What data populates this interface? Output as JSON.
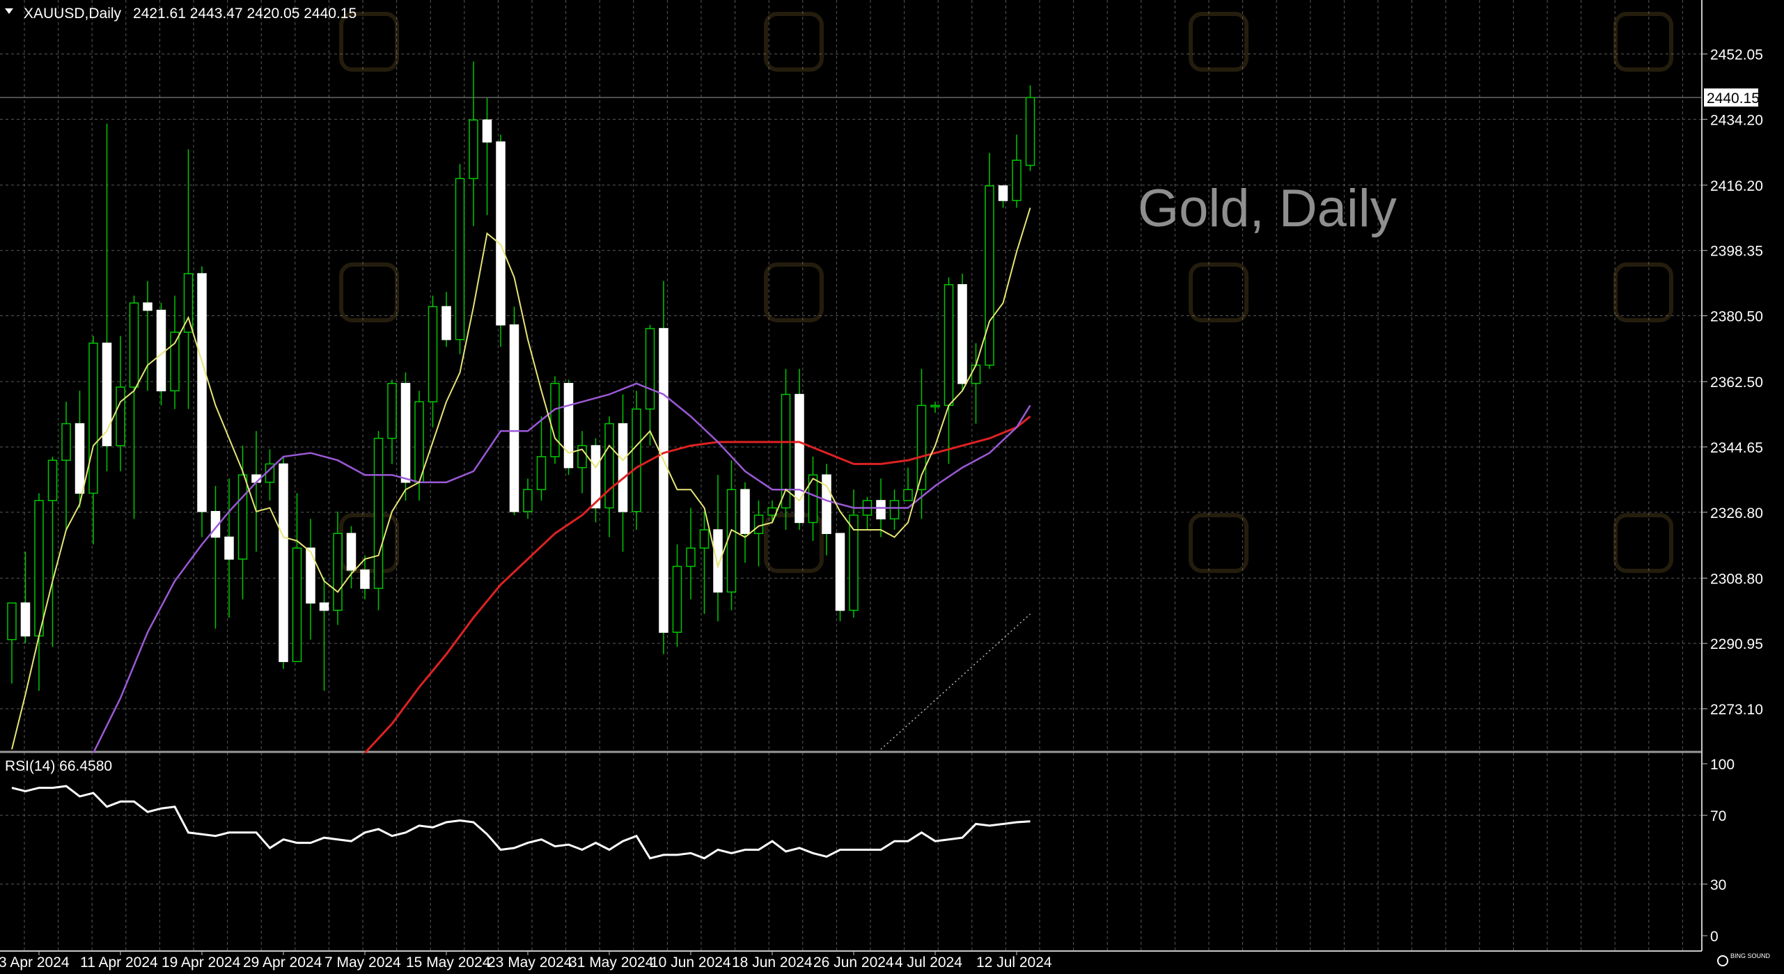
{
  "header": {
    "symbol_label": "XAUUSD,Daily",
    "ohlc": "2421.61 2443.47 2420.05 2440.15"
  },
  "watermark": "Gold, Daily",
  "last_price_label": "2440.15",
  "rsi_label": "RSI(14) 66.4580",
  "colors": {
    "background": "#000000",
    "grid": "#5a5a5a",
    "up_wick": "#00c800",
    "up_body": "#000000",
    "down_body": "#ffffff",
    "ma_fast": "#e6e676",
    "ma_mid": "#9b59d6",
    "ma_slow": "#dd2222",
    "rsi": "#ffffff"
  },
  "chart_data": [
    {
      "type": "candlestick",
      "title": "Gold, Daily",
      "ylim": [
        2261.3,
        2466.8
      ],
      "y_ticks": [
        "2452.05",
        "2434.20",
        "2416.20",
        "2398.35",
        "2380.50",
        "2362.50",
        "2344.65",
        "2326.80",
        "2308.80",
        "2290.95",
        "2273.10"
      ],
      "x_ticks": [
        {
          "i": 2,
          "label": "3 Apr 2024"
        },
        {
          "i": 8,
          "label": "11 Apr 2024"
        },
        {
          "i": 14,
          "label": "19 Apr 2024"
        },
        {
          "i": 20,
          "label": "29 Apr 2024"
        },
        {
          "i": 26,
          "label": "7 May 2024"
        },
        {
          "i": 32,
          "label": "15 May 2024"
        },
        {
          "i": 38,
          "label": "23 May 2024"
        },
        {
          "i": 44,
          "label": "31 May 2024"
        },
        {
          "i": 50,
          "label": "10 Jun 2024"
        },
        {
          "i": 56,
          "label": "18 Jun 2024"
        },
        {
          "i": 62,
          "label": "26 Jun 2024"
        },
        {
          "i": 68,
          "label": "4 Jul 2024"
        },
        {
          "i": 74,
          "label": "12 Jul 2024"
        }
      ],
      "candles": [
        [
          2292,
          2302,
          2280,
          2302
        ],
        [
          2302,
          2293,
          2291,
          2316
        ],
        [
          2293,
          2330,
          2278,
          2332
        ],
        [
          2330,
          2341,
          2290,
          2342
        ],
        [
          2341,
          2351,
          2322,
          2357
        ],
        [
          2351,
          2332,
          2328,
          2360
        ],
        [
          2332,
          2373,
          2318,
          2375
        ],
        [
          2373,
          2345,
          2338,
          2433
        ],
        [
          2345,
          2361,
          2338,
          2375
        ],
        [
          2361,
          2384,
          2325,
          2386
        ],
        [
          2384,
          2382,
          2360,
          2390
        ],
        [
          2382,
          2360,
          2356,
          2384
        ],
        [
          2360,
          2376,
          2355,
          2386
        ],
        [
          2376,
          2392,
          2355,
          2426
        ],
        [
          2392,
          2327,
          2320,
          2394
        ],
        [
          2327,
          2320,
          2295,
          2334
        ],
        [
          2320,
          2314,
          2298,
          2336
        ],
        [
          2314,
          2337,
          2303,
          2345
        ],
        [
          2337,
          2335,
          2316,
          2349
        ],
        [
          2335,
          2340,
          2330,
          2344
        ],
        [
          2340,
          2286,
          2284,
          2342
        ],
        [
          2286,
          2317,
          2286,
          2332
        ],
        [
          2317,
          2302,
          2292,
          2325
        ],
        [
          2302,
          2300,
          2278,
          2309
        ],
        [
          2300,
          2321,
          2296,
          2327
        ],
        [
          2321,
          2311,
          2306,
          2323
        ],
        [
          2311,
          2306,
          2303,
          2315
        ],
        [
          2306,
          2347,
          2300,
          2349
        ],
        [
          2347,
          2362,
          2340,
          2363
        ],
        [
          2362,
          2335,
          2330,
          2365
        ],
        [
          2335,
          2357,
          2330,
          2360
        ],
        [
          2357,
          2383,
          2350,
          2386
        ],
        [
          2383,
          2374,
          2372,
          2387
        ],
        [
          2374,
          2418,
          2370,
          2422
        ],
        [
          2418,
          2434,
          2405,
          2450
        ],
        [
          2434,
          2428,
          2408,
          2440
        ],
        [
          2428,
          2378,
          2372,
          2430
        ],
        [
          2378,
          2327,
          2326,
          2383
        ],
        [
          2327,
          2333,
          2325,
          2336
        ],
        [
          2333,
          2342,
          2330,
          2353
        ],
        [
          2342,
          2362,
          2340,
          2364
        ],
        [
          2362,
          2339,
          2337,
          2363
        ],
        [
          2339,
          2345,
          2332,
          2349
        ],
        [
          2345,
          2328,
          2324,
          2347
        ],
        [
          2328,
          2351,
          2320,
          2353
        ],
        [
          2351,
          2327,
          2316,
          2359
        ],
        [
          2327,
          2355,
          2322,
          2360
        ],
        [
          2355,
          2377,
          2345,
          2378
        ],
        [
          2377,
          2294,
          2288,
          2390
        ],
        [
          2294,
          2312,
          2290,
          2318
        ],
        [
          2312,
          2317,
          2303,
          2328
        ],
        [
          2317,
          2322,
          2299,
          2327
        ],
        [
          2322,
          2305,
          2297,
          2337
        ],
        [
          2305,
          2333,
          2300,
          2341
        ],
        [
          2333,
          2321,
          2313,
          2335
        ],
        [
          2321,
          2326,
          2312,
          2330
        ],
        [
          2326,
          2328,
          2324,
          2330
        ],
        [
          2328,
          2359,
          2322,
          2366
        ],
        [
          2359,
          2324,
          2322,
          2366
        ],
        [
          2324,
          2337,
          2319,
          2342
        ],
        [
          2337,
          2321,
          2315,
          2340
        ],
        [
          2321,
          2300,
          2297,
          2321
        ],
        [
          2300,
          2326,
          2298,
          2333
        ],
        [
          2326,
          2330,
          2322,
          2331
        ],
        [
          2330,
          2325,
          2320,
          2336
        ],
        [
          2325,
          2330,
          2322,
          2333
        ],
        [
          2330,
          2333,
          2330,
          2339
        ],
        [
          2333,
          2356,
          2325,
          2366
        ],
        [
          2356,
          2356,
          2354,
          2357
        ],
        [
          2356,
          2389,
          2340,
          2391
        ],
        [
          2389,
          2362,
          2360,
          2392
        ],
        [
          2362,
          2367,
          2351,
          2373
        ],
        [
          2367,
          2416,
          2366,
          2425
        ],
        [
          2416,
          2412,
          2410,
          2416
        ],
        [
          2412,
          2423,
          2410,
          2430
        ],
        [
          2421.61,
          2440.15,
          2420.05,
          2443.47
        ]
      ],
      "ma_fast": [
        [
          0,
          2262
        ],
        [
          1,
          2277
        ],
        [
          2,
          2293
        ],
        [
          3,
          2308
        ],
        [
          4,
          2322
        ],
        [
          5,
          2329
        ],
        [
          6,
          2345
        ],
        [
          7,
          2349
        ],
        [
          8,
          2357
        ],
        [
          9,
          2360
        ],
        [
          10,
          2367
        ],
        [
          11,
          2370
        ],
        [
          12,
          2373
        ],
        [
          13,
          2380
        ],
        [
          14,
          2368
        ],
        [
          15,
          2356
        ],
        [
          16,
          2347
        ],
        [
          17,
          2338
        ],
        [
          18,
          2327
        ],
        [
          19,
          2328
        ],
        [
          20,
          2320
        ],
        [
          21,
          2319
        ],
        [
          22,
          2316
        ],
        [
          23,
          2308
        ],
        [
          24,
          2305
        ],
        [
          25,
          2310
        ],
        [
          26,
          2314
        ],
        [
          27,
          2315
        ],
        [
          28,
          2327
        ],
        [
          29,
          2333
        ],
        [
          30,
          2335
        ],
        [
          31,
          2346
        ],
        [
          32,
          2357
        ],
        [
          33,
          2365
        ],
        [
          34,
          2383
        ],
        [
          35,
          2403
        ],
        [
          36,
          2400
        ],
        [
          37,
          2391
        ],
        [
          38,
          2374
        ],
        [
          39,
          2360
        ],
        [
          40,
          2347
        ],
        [
          41,
          2343
        ],
        [
          42,
          2344
        ],
        [
          43,
          2339
        ],
        [
          44,
          2345
        ],
        [
          45,
          2341
        ],
        [
          46,
          2345
        ],
        [
          47,
          2349
        ],
        [
          48,
          2341
        ],
        [
          49,
          2333
        ],
        [
          50,
          2333
        ],
        [
          51,
          2328
        ],
        [
          52,
          2312
        ],
        [
          53,
          2322
        ],
        [
          54,
          2320
        ],
        [
          55,
          2323
        ],
        [
          56,
          2324
        ],
        [
          57,
          2333
        ],
        [
          58,
          2330
        ],
        [
          59,
          2336
        ],
        [
          60,
          2334
        ],
        [
          61,
          2327
        ],
        [
          62,
          2322
        ],
        [
          63,
          2322
        ],
        [
          64,
          2322
        ],
        [
          65,
          2320
        ],
        [
          66,
          2324
        ],
        [
          67,
          2337
        ],
        [
          68,
          2345
        ],
        [
          69,
          2356
        ],
        [
          70,
          2360
        ],
        [
          71,
          2367
        ],
        [
          72,
          2379
        ],
        [
          73,
          2384
        ],
        [
          74,
          2398
        ],
        [
          75,
          2410
        ]
      ],
      "ma_mid": [
        [
          6,
          2261
        ],
        [
          8,
          2276
        ],
        [
          10,
          2294
        ],
        [
          12,
          2308
        ],
        [
          14,
          2318
        ],
        [
          16,
          2327
        ],
        [
          18,
          2335
        ],
        [
          20,
          2342
        ],
        [
          22,
          2343
        ],
        [
          24,
          2341
        ],
        [
          26,
          2337
        ],
        [
          28,
          2337
        ],
        [
          30,
          2335
        ],
        [
          32,
          2335
        ],
        [
          34,
          2338
        ],
        [
          36,
          2349
        ],
        [
          38,
          2349
        ],
        [
          40,
          2355
        ],
        [
          42,
          2357
        ],
        [
          44,
          2359
        ],
        [
          46,
          2362
        ],
        [
          48,
          2359
        ],
        [
          50,
          2353
        ],
        [
          52,
          2346
        ],
        [
          54,
          2338
        ],
        [
          56,
          2333
        ],
        [
          58,
          2333
        ],
        [
          60,
          2330
        ],
        [
          62,
          2328
        ],
        [
          64,
          2328
        ],
        [
          66,
          2328
        ],
        [
          68,
          2334
        ],
        [
          70,
          2339
        ],
        [
          72,
          2343
        ],
        [
          74,
          2350
        ],
        [
          75,
          2356
        ]
      ],
      "ma_slow": [
        [
          26,
          2261
        ],
        [
          28,
          2269
        ],
        [
          30,
          2279
        ],
        [
          32,
          2288
        ],
        [
          34,
          2298
        ],
        [
          36,
          2307
        ],
        [
          38,
          2314
        ],
        [
          40,
          2321
        ],
        [
          42,
          2326
        ],
        [
          44,
          2333
        ],
        [
          46,
          2339
        ],
        [
          48,
          2343
        ],
        [
          50,
          2345
        ],
        [
          52,
          2346
        ],
        [
          54,
          2346
        ],
        [
          56,
          2346
        ],
        [
          58,
          2346
        ],
        [
          60,
          2343
        ],
        [
          62,
          2340
        ],
        [
          64,
          2340
        ],
        [
          66,
          2341
        ],
        [
          68,
          2343
        ],
        [
          70,
          2345
        ],
        [
          72,
          2347
        ],
        [
          74,
          2350
        ],
        [
          75,
          2353
        ]
      ],
      "dotted_line": [
        [
          64,
          2262
        ],
        [
          75,
          2299
        ]
      ]
    },
    {
      "type": "line",
      "title": "RSI(14) 66.4580",
      "ylim": [
        0,
        100
      ],
      "y_ticks": [
        "100",
        "70",
        "30",
        "0"
      ],
      "values": [
        86,
        84,
        86,
        86,
        87,
        81,
        83,
        75,
        78,
        78,
        72,
        74,
        75,
        60,
        59,
        58,
        60,
        60,
        60,
        51,
        56,
        54,
        54,
        57,
        56,
        55,
        60,
        62,
        58,
        60,
        64,
        63,
        66,
        67,
        66,
        59,
        50,
        51,
        54,
        56,
        52,
        53,
        50,
        54,
        50,
        55,
        58,
        45,
        47,
        47,
        48,
        45,
        50,
        48,
        50,
        50,
        55,
        49,
        51,
        48,
        46,
        50,
        50,
        50,
        50,
        55,
        55,
        60,
        55,
        56,
        57,
        65,
        64,
        65,
        66,
        66.458
      ]
    }
  ]
}
